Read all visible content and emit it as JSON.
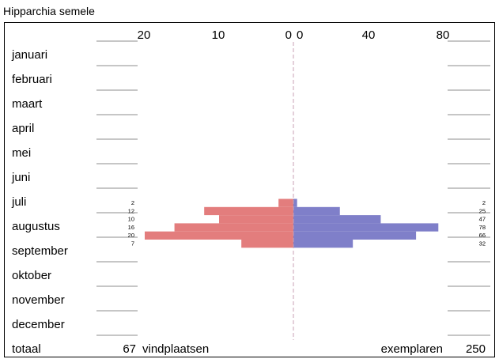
{
  "title": "Hipparchia semele",
  "chart_data": {
    "type": "bar",
    "orientation": "horizontal-mirrored",
    "months": [
      "januari",
      "februari",
      "maart",
      "april",
      "mei",
      "juni",
      "juli",
      "augustus",
      "september",
      "oktober",
      "november",
      "december"
    ],
    "left_axis": {
      "ticks": [
        20,
        10,
        0
      ],
      "range": [
        0,
        20
      ]
    },
    "right_axis": {
      "ticks": [
        0,
        40,
        80
      ],
      "range": [
        0,
        80
      ]
    },
    "periods": [
      {
        "month": "juli",
        "vindplaatsen": 2,
        "exemplaren": 2
      },
      {
        "month": "augustus",
        "vindplaatsen": 12,
        "exemplaren": 25
      },
      {
        "month": "augustus",
        "vindplaatsen": 10,
        "exemplaren": 47
      },
      {
        "month": "augustus",
        "vindplaatsen": 16,
        "exemplaren": 78
      },
      {
        "month": "augustus",
        "vindplaatsen": 20,
        "exemplaren": 66
      },
      {
        "month": "augustus",
        "vindplaatsen": 7,
        "exemplaren": 32
      }
    ],
    "colors": {
      "vindplaatsen": "#e37d7d",
      "exemplaren": "#7f7fc9",
      "center_line": "#c9a0b4"
    },
    "totals": {
      "label": "totaal",
      "vindplaatsen_value": "67",
      "vindplaatsen_label": "vindplaatsen",
      "exemplaren_label": "exemplaren",
      "exemplaren_value": "250"
    }
  }
}
